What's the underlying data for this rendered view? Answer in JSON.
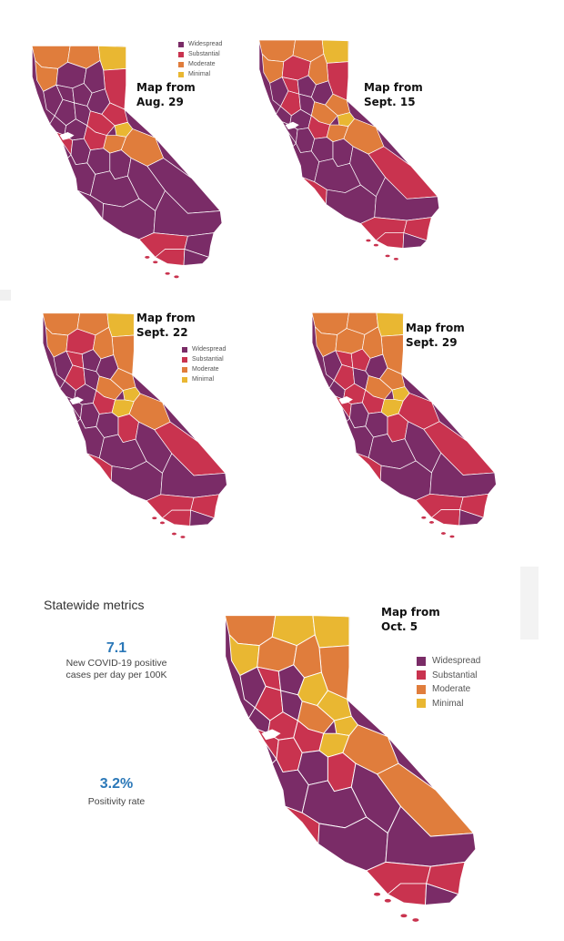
{
  "tiers": [
    {
      "name": "Widespread",
      "color": "#7a2c67"
    },
    {
      "name": "Substantial",
      "color": "#c9334f"
    },
    {
      "name": "Moderate",
      "color": "#e07d3c"
    },
    {
      "name": "Minimal",
      "color": "#e9b732"
    }
  ],
  "maps": [
    {
      "title": "Map from\nAug. 29"
    },
    {
      "title": "Map from\nSept. 15"
    },
    {
      "title": "Map from\nSept. 22"
    },
    {
      "title": "Map from\nSept. 29"
    },
    {
      "title": "Map from\nOct. 5"
    }
  ],
  "metrics": {
    "title": "Statewide metrics",
    "cases_value": "7.1",
    "cases_label": "New COVID-19 positive cases per day per 100K",
    "positivity_value": "3.2%",
    "positivity_label": "Positivity rate"
  }
}
